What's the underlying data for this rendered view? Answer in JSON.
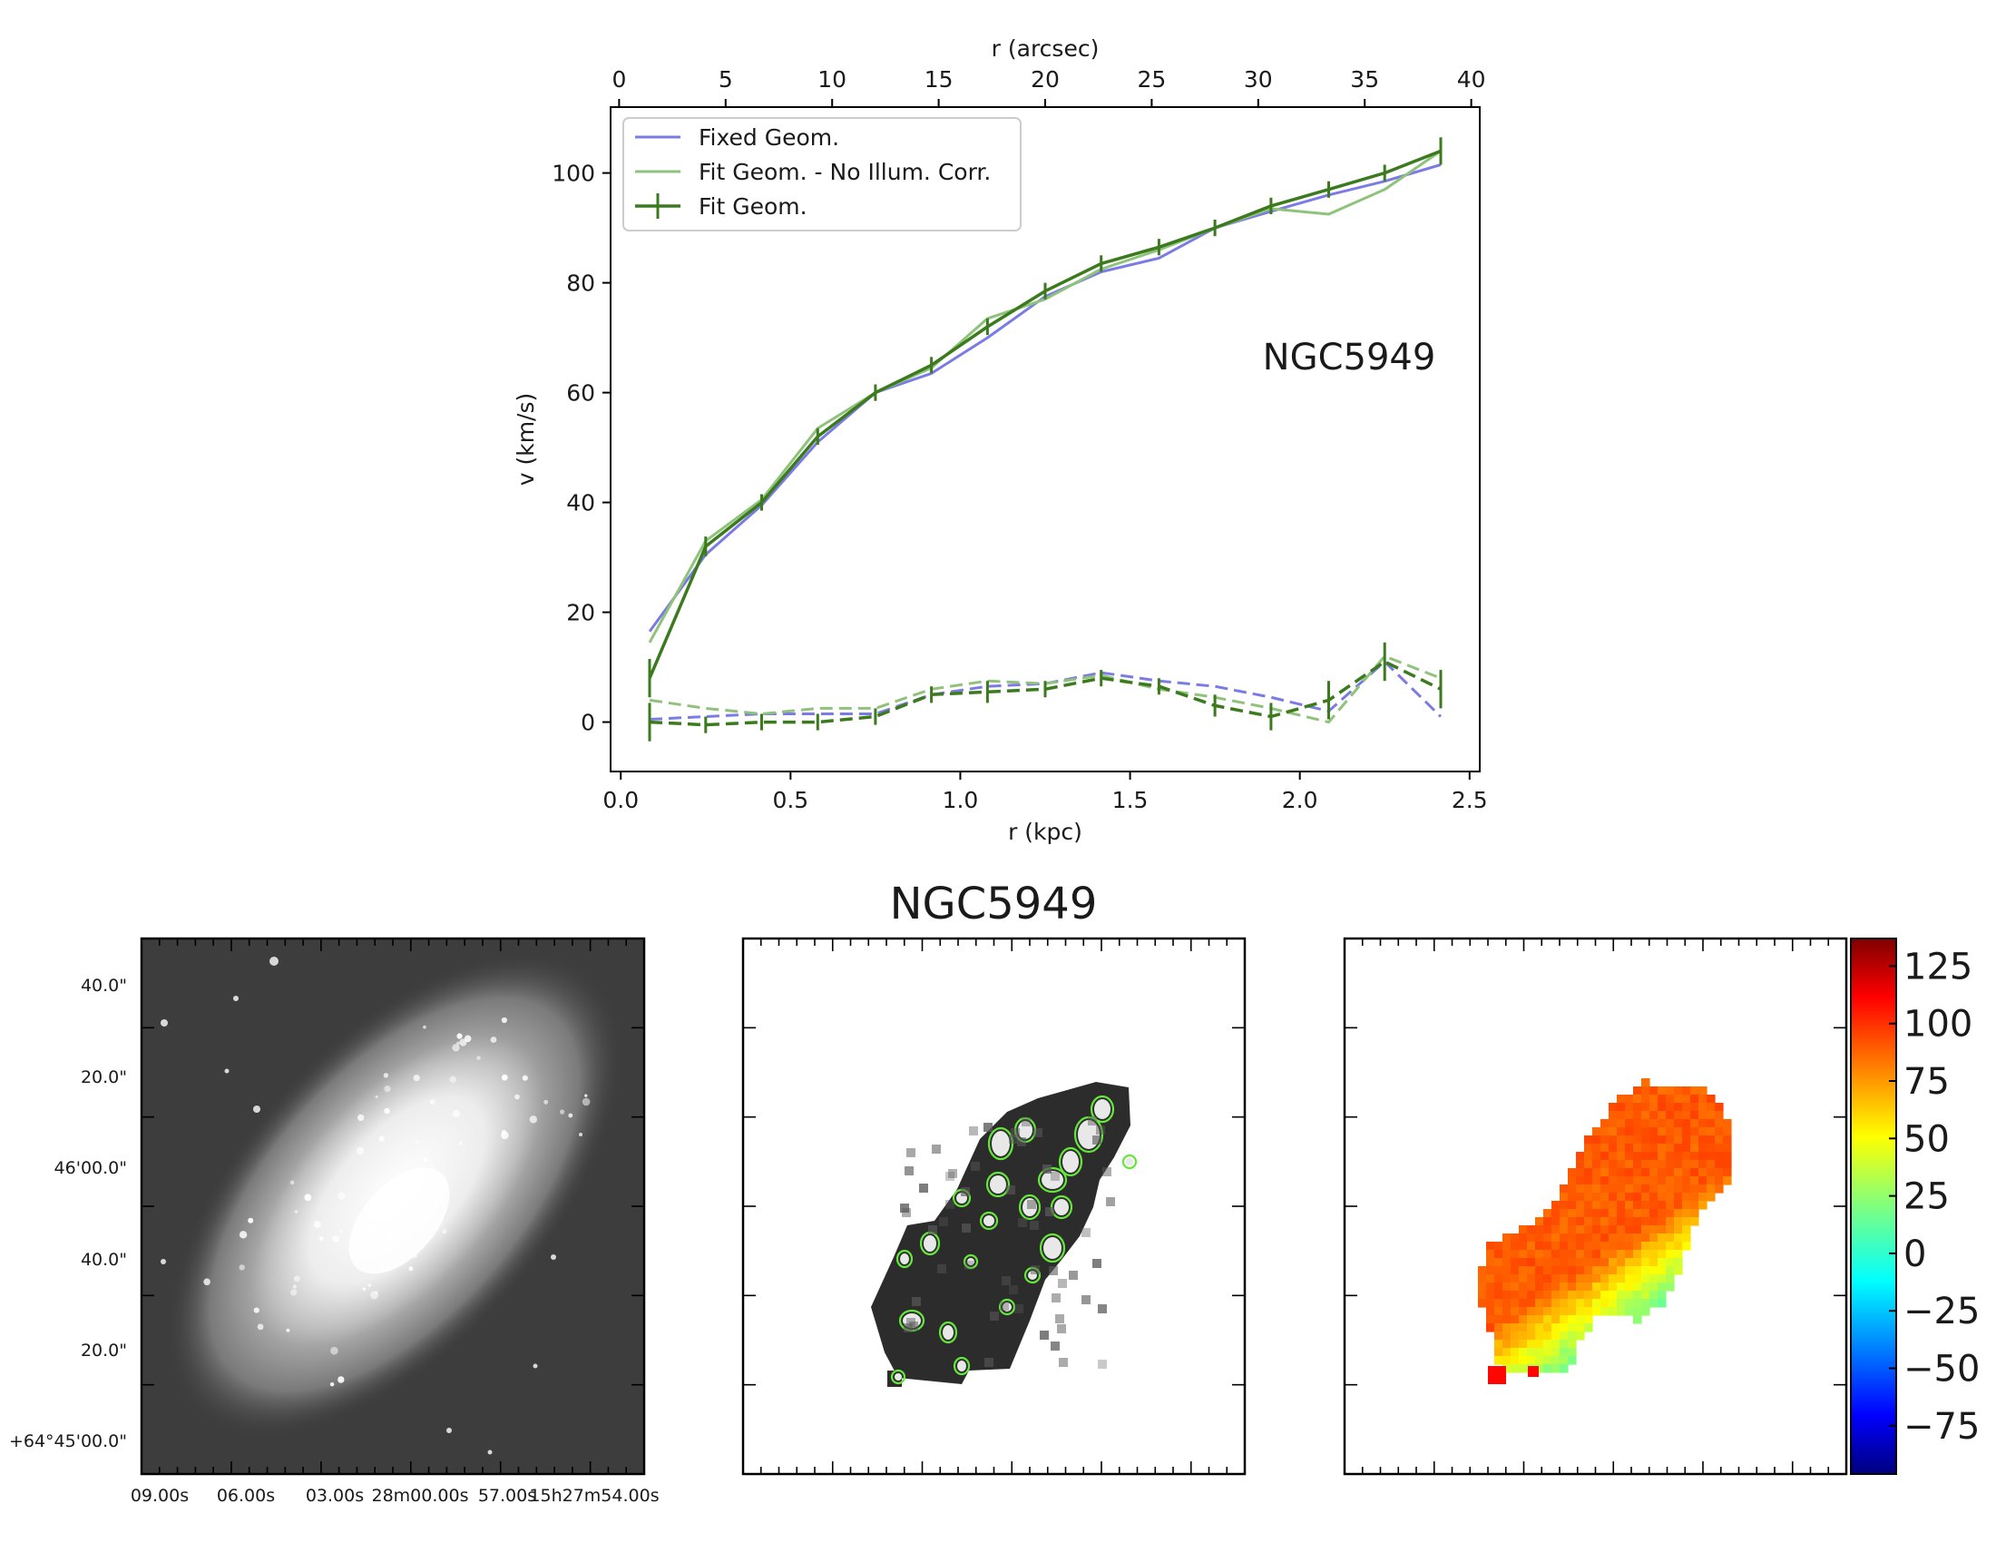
{
  "colors": {
    "fixed": "#7b7be6",
    "fit_no_illum": "#8fc27a",
    "fit": "#3c7a1e",
    "background": "#ffffff",
    "frame": "#000000"
  },
  "chart_data": [
    {
      "type": "line",
      "galaxy_label": "NGC5949",
      "xlabel": "r (kpc)",
      "ylabel": "v (km/s)",
      "top_xlabel": "r (arcsec)",
      "xlim": [
        -0.03,
        2.53
      ],
      "ylim": [
        -9,
        112
      ],
      "top_xlim": [
        -0.4,
        40.4
      ],
      "xticks": [
        "0.0",
        "0.5",
        "1.0",
        "1.5",
        "2.0",
        "2.5"
      ],
      "yticks": [
        "0",
        "20",
        "40",
        "60",
        "80",
        "100"
      ],
      "top_xticks": [
        "0",
        "5",
        "10",
        "15",
        "20",
        "25",
        "30",
        "35",
        "40"
      ],
      "legend_position": "top-left",
      "grid": false,
      "legend": [
        "Fixed Geom.",
        "Fit Geom. - No Illum. Corr.",
        "Fit Geom."
      ],
      "x": [
        0.085,
        0.25,
        0.415,
        0.58,
        0.75,
        0.915,
        1.08,
        1.25,
        1.415,
        1.585,
        1.75,
        1.915,
        2.085,
        2.25,
        2.415
      ],
      "series": [
        {
          "name": "Fixed Geom.",
          "component": "rotation",
          "style": "solid",
          "color_key": "fixed",
          "values": [
            16.5,
            30.5,
            39.5,
            51.0,
            60.0,
            63.5,
            70.0,
            77.5,
            82.0,
            84.5,
            90.0,
            93.0,
            96.0,
            98.5,
            101.5
          ]
        },
        {
          "name": "Fit Geom. - No Illum. Corr.",
          "component": "rotation",
          "style": "solid",
          "color_key": "fit_no_illum",
          "values": [
            14.5,
            33.0,
            40.5,
            53.5,
            60.0,
            64.5,
            73.5,
            77.0,
            82.5,
            86.0,
            90.0,
            93.5,
            92.5,
            97.0,
            104.0
          ]
        },
        {
          "name": "Fit Geom.",
          "component": "rotation",
          "style": "solid",
          "color_key": "fit",
          "values": [
            8.0,
            32.0,
            40.0,
            52.0,
            60.0,
            65.0,
            72.0,
            78.5,
            83.5,
            86.5,
            90.0,
            94.0,
            97.0,
            100.0,
            104.0
          ],
          "errors": [
            3.5,
            1.8,
            1.5,
            1.5,
            1.5,
            1.5,
            1.5,
            1.5,
            1.5,
            1.5,
            1.5,
            1.5,
            1.5,
            1.5,
            2.5
          ]
        },
        {
          "name": "Fixed Geom.",
          "component": "dispersion",
          "style": "dashed",
          "color_key": "fixed",
          "values": [
            0.5,
            1.0,
            1.5,
            1.5,
            1.5,
            5.0,
            6.5,
            7.0,
            9.0,
            7.5,
            6.5,
            4.5,
            2.0,
            11.0,
            1.0
          ]
        },
        {
          "name": "Fit Geom. - No Illum. Corr.",
          "component": "dispersion",
          "style": "dashed",
          "color_key": "fit_no_illum",
          "values": [
            4.0,
            2.5,
            1.5,
            2.5,
            2.5,
            6.0,
            7.5,
            7.0,
            8.5,
            6.0,
            4.5,
            2.5,
            0.0,
            12.0,
            8.0
          ]
        },
        {
          "name": "Fit Geom.",
          "component": "dispersion",
          "style": "dashed",
          "color_key": "fit",
          "values": [
            0.0,
            -0.5,
            0.0,
            0.0,
            1.0,
            5.0,
            5.5,
            6.0,
            8.0,
            6.5,
            3.0,
            1.0,
            4.0,
            11.0,
            6.0
          ],
          "errors": [
            3.5,
            1.5,
            1.5,
            1.5,
            1.5,
            1.5,
            2.0,
            1.5,
            1.5,
            1.5,
            2.0,
            2.5,
            3.5,
            3.5,
            3.5
          ]
        }
      ]
    },
    {
      "type": "image",
      "description_key": "optical",
      "ra_ticks": [
        "09.00s",
        "06.00s",
        "03.00s",
        "28m00.00s",
        "57.00s",
        "15h27m54.00s"
      ],
      "dec_ticks": [
        "40.0\"",
        "20.0\"",
        "46'00.0\"",
        "40.0\"",
        "20.0\"",
        "+64°45'00.0\""
      ]
    },
    {
      "type": "heatmap",
      "description_key": "intensity",
      "title": "NGC5949"
    },
    {
      "type": "heatmap",
      "description_key": "velocity",
      "colorbar_ticks": [
        "125",
        "100",
        "75",
        "50",
        "25",
        "0",
        "−25",
        "−50",
        "−75"
      ],
      "colorbar_range": [
        -96,
        137
      ],
      "colormap": "jet"
    }
  ]
}
